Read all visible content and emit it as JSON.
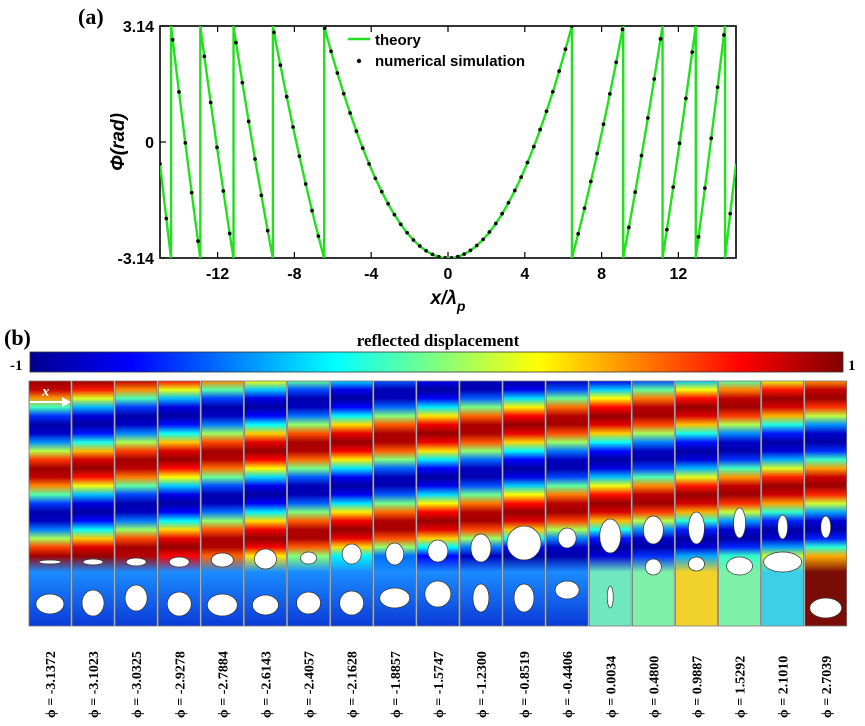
{
  "panel_a": {
    "label": "(a)",
    "chart_data": {
      "type": "line",
      "title": "",
      "xlabel": "x/λp",
      "xlabel_main": "x/λ",
      "xlabel_sub": "p",
      "ylabel": "Φ(rad)",
      "xlim": [
        -15,
        15
      ],
      "ylim": [
        -3.14,
        3.14
      ],
      "xticks": [
        "-12",
        "-8",
        "-4",
        "0",
        "4",
        "8",
        "12"
      ],
      "xtick_values": [
        -12,
        -8,
        -4,
        0,
        4,
        8,
        12
      ],
      "yticks": [
        "-3.14",
        "0",
        "3.14"
      ],
      "ytick_values": [
        -3.14,
        0,
        3.14
      ],
      "legend_position": "top-center",
      "series": [
        {
          "name": "theory",
          "kind": "line",
          "color": "#22e01e",
          "formula": "wrap(-pi + 6.28*(x/6.45)^2) to [-pi, pi]"
        },
        {
          "name": "numerical simulation",
          "kind": "points",
          "color": "#111111",
          "formula": "same as theory, sampled every 0.33 x/λp"
        }
      ]
    }
  },
  "panel_b": {
    "label": "(b)",
    "colorbar": {
      "title": "reflected displacement",
      "min_label": "-1",
      "max_label": "1",
      "min": -1,
      "max": 1
    },
    "arrow_label": "x",
    "cells": [
      {
        "phi": "ϕ = -3.1372"
      },
      {
        "phi": "ϕ = -3.1023"
      },
      {
        "phi": "ϕ = -3.0325"
      },
      {
        "phi": "ϕ = -2.9278"
      },
      {
        "phi": "ϕ = -2.7884"
      },
      {
        "phi": "ϕ = -2.6143"
      },
      {
        "phi": "ϕ = -2.4057"
      },
      {
        "phi": "ϕ = -2.1628"
      },
      {
        "phi": "ϕ = -1.8857"
      },
      {
        "phi": "ϕ = -1.5747"
      },
      {
        "phi": "ϕ = -1.2300"
      },
      {
        "phi": "ϕ = -0.8519"
      },
      {
        "phi": "ϕ = -0.4406"
      },
      {
        "phi": "ϕ = 0.0034"
      },
      {
        "phi": "ϕ = 0.4800"
      },
      {
        "phi": "ϕ = 0.9887"
      },
      {
        "phi": "ϕ = 1.5292"
      },
      {
        "phi": "ϕ = 2.1010"
      },
      {
        "phi": "ϕ = 2.7039"
      }
    ]
  }
}
